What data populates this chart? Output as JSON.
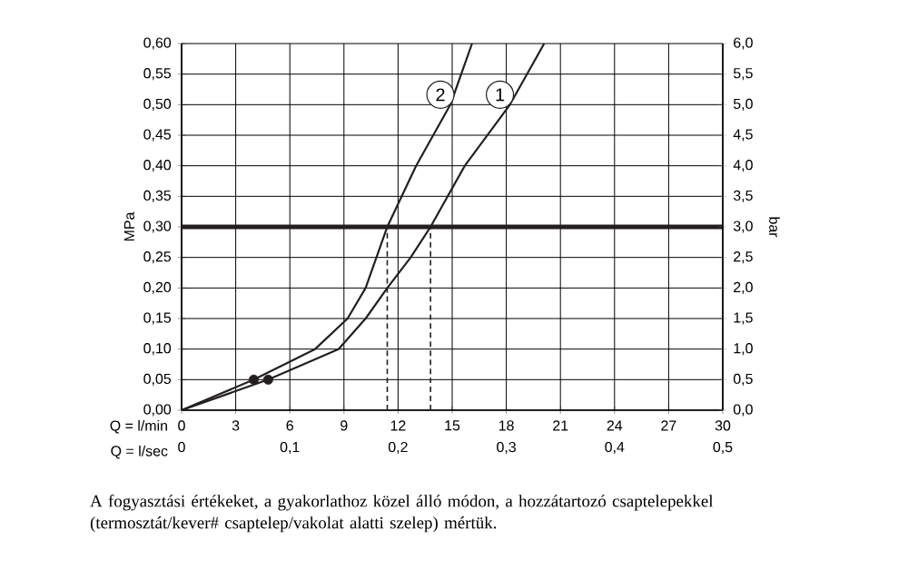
{
  "chart_data": {
    "type": "line",
    "xlabel": "Q = l/min",
    "x2label": "Q = l/sec",
    "ylabel": "MPa",
    "y2label": "bar",
    "xlim": [
      0,
      30
    ],
    "xticks": [
      0,
      3,
      6,
      9,
      12,
      15,
      18,
      21,
      24,
      27,
      30
    ],
    "x2lim": [
      0,
      0.5
    ],
    "x2ticks": [
      0,
      {
        "value": 0.1,
        "label": "0,1"
      },
      {
        "value": 0.2,
        "label": "0,2"
      },
      {
        "value": 0.3,
        "label": "0,3"
      },
      {
        "value": 0.4,
        "label": "0,4"
      },
      {
        "value": 0.5,
        "label": "0,5"
      }
    ],
    "ylim": [
      0,
      0.6
    ],
    "yticks": [
      {
        "value": 0,
        "label": "0,00"
      },
      {
        "value": 0.05,
        "label": "0,05"
      },
      {
        "value": 0.1,
        "label": "0,10"
      },
      {
        "value": 0.15,
        "label": "0,15"
      },
      {
        "value": 0.2,
        "label": "0,20"
      },
      {
        "value": 0.25,
        "label": "0,25"
      },
      {
        "value": 0.3,
        "label": "0,30"
      },
      {
        "value": 0.35,
        "label": "0,35"
      },
      {
        "value": 0.4,
        "label": "0,40"
      },
      {
        "value": 0.45,
        "label": "0,45"
      },
      {
        "value": 0.5,
        "label": "0,50"
      },
      {
        "value": 0.55,
        "label": "0,55"
      },
      {
        "value": 0.6,
        "label": "0,60"
      }
    ],
    "y2lim": [
      0,
      6
    ],
    "y2ticks": [
      {
        "value": 0,
        "label": "0,0"
      },
      {
        "value": 0.5,
        "label": "0,5"
      },
      {
        "value": 1,
        "label": "1,0"
      },
      {
        "value": 1.5,
        "label": "1,5"
      },
      {
        "value": 2,
        "label": "2,0"
      },
      {
        "value": 2.5,
        "label": "2,5"
      },
      {
        "value": 3,
        "label": "3,0"
      },
      {
        "value": 3.5,
        "label": "3,5"
      },
      {
        "value": 4,
        "label": "4,0"
      },
      {
        "value": 4.5,
        "label": "4,5"
      },
      {
        "value": 5,
        "label": "5,0"
      },
      {
        "value": 5.5,
        "label": "5,5"
      },
      {
        "value": 6,
        "label": "6,0"
      }
    ],
    "grid": true,
    "legend": "top",
    "series": [
      {
        "name": "1",
        "color": "#231f20",
        "x": [
          0,
          4.8,
          8.7,
          10.2,
          11.4,
          12.7,
          13.8,
          15.7,
          18.2,
          20.1
        ],
        "values": [
          0,
          0.05,
          0.1,
          0.15,
          0.2,
          0.25,
          0.3,
          0.4,
          0.5,
          0.6
        ]
      },
      {
        "name": "2",
        "color": "#231f20",
        "x": [
          0,
          4.0,
          7.4,
          9.2,
          10.2,
          11.4,
          13.0,
          14.9,
          16.1
        ],
        "values": [
          0,
          0.05,
          0.1,
          0.15,
          0.2,
          0.3,
          0.4,
          0.5,
          0.6
        ]
      },
      {
        "type": "scatter",
        "color": "#231f20",
        "x": [
          4.0,
          4.8
        ],
        "values": [
          0.05,
          0.05
        ]
      }
    ],
    "ref_lines": [
      {
        "axis": "y",
        "value": 0.3,
        "color": "#231f20",
        "line_style": "solid"
      },
      {
        "axis": "x",
        "value": 11.4,
        "color": "#231f20",
        "line_style": "dashed"
      },
      {
        "axis": "x",
        "value": 13.8,
        "color": "#231f20",
        "line_style": "dashed"
      }
    ],
    "annotations": [
      "A fogyasztási értékeket, a gyakorlathoz közel álló módon, a hozzátartozó csaptelepekkel (termosztát/kever# csaptelep/vakolat alatti szelep) mértük."
    ]
  }
}
